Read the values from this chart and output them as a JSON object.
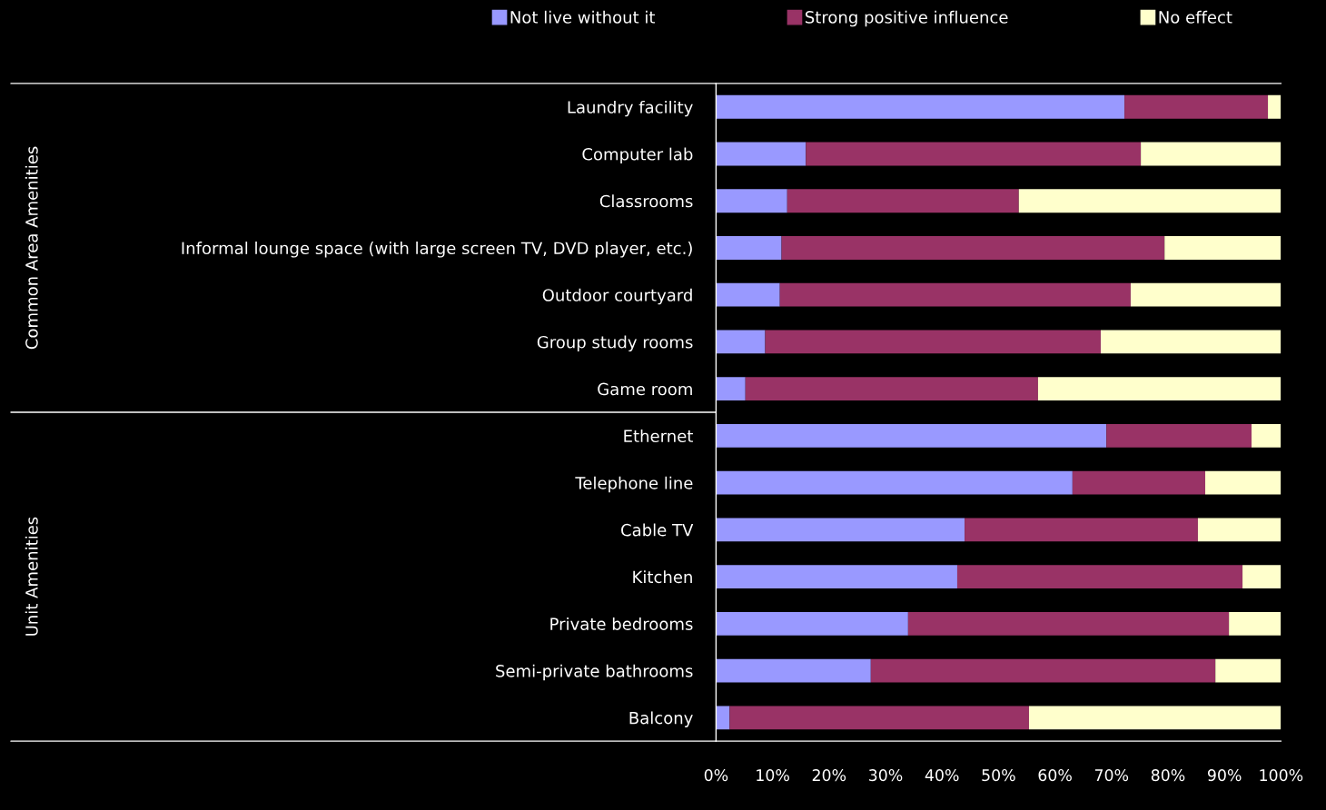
{
  "chart_data": {
    "type": "bar",
    "orientation": "horizontal",
    "stacked": true,
    "categories": [
      "Laundry facility",
      "Computer lab",
      "Classrooms",
      "Informal lounge space (with large screen TV, DVD player, etc.)",
      "Outdoor courtyard",
      "Group study rooms",
      "Game room",
      "Ethernet",
      "Telephone line",
      "Cable TV",
      "Kitchen",
      "Private bedrooms",
      "Semi-private bathrooms",
      "Balcony"
    ],
    "series": [
      {
        "name": "Not live without it",
        "color": "#9999ff",
        "values": [
          72.3,
          15.9,
          12.6,
          11.6,
          11.3,
          8.7,
          5.2,
          69.1,
          63.1,
          44.0,
          42.7,
          34.0,
          27.4,
          2.4
        ]
      },
      {
        "name": "Strong positive influence",
        "color": "#993366",
        "values": [
          25.4,
          59.3,
          41.0,
          67.8,
          62.1,
          59.4,
          51.8,
          25.7,
          23.5,
          41.3,
          50.5,
          56.8,
          61.0,
          53.0
        ]
      },
      {
        "name": "No effect",
        "color": "#ffffcc",
        "values": [
          2.3,
          24.8,
          46.4,
          20.6,
          26.6,
          31.9,
          43.0,
          5.2,
          13.4,
          14.7,
          6.8,
          9.2,
          11.6,
          44.6
        ]
      }
    ],
    "xlim": [
      0,
      100
    ],
    "xticks": [
      {
        "value": 0,
        "label": "0%"
      },
      {
        "value": 10,
        "label": "10%"
      },
      {
        "value": 20,
        "label": "20%"
      },
      {
        "value": 30,
        "label": "30%"
      },
      {
        "value": 40,
        "label": "40%"
      },
      {
        "value": 50,
        "label": "50%"
      },
      {
        "value": 60,
        "label": "60%"
      },
      {
        "value": 70,
        "label": "70%"
      },
      {
        "value": 80,
        "label": "80%"
      },
      {
        "value": 90,
        "label": "90%"
      },
      {
        "value": 100,
        "label": "100%"
      }
    ],
    "annotations": [
      "Common Area Amenities",
      "Unit Amenities"
    ],
    "legend": "top",
    "grid": false
  }
}
